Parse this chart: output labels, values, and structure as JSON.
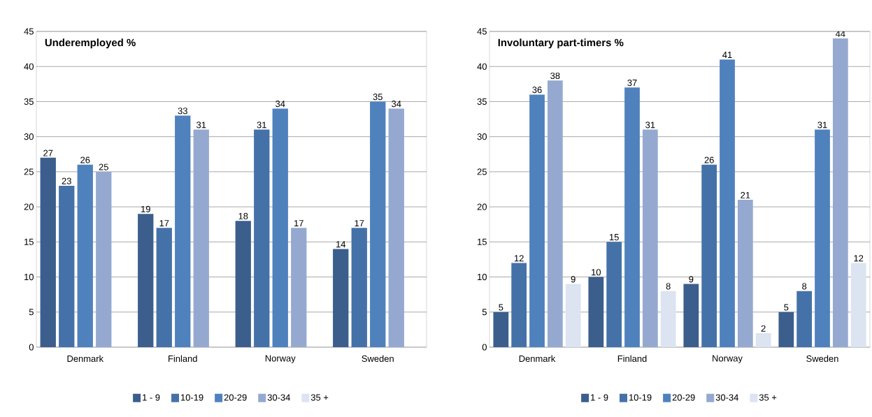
{
  "chart_data": [
    {
      "type": "bar",
      "title": "Underemployed %",
      "categories": [
        "Denmark",
        "Finland",
        "Norway",
        "Sweden"
      ],
      "series": [
        {
          "name": "1 - 9",
          "color": "#3b5e8c",
          "values": [
            27,
            19,
            18,
            14
          ]
        },
        {
          "name": "10-19",
          "color": "#4472a8",
          "values": [
            23,
            17,
            31,
            17
          ]
        },
        {
          "name": "20-29",
          "color": "#4f81bd",
          "values": [
            26,
            33,
            34,
            35
          ]
        },
        {
          "name": "30-34",
          "color": "#95a9d0",
          "values": [
            25,
            31,
            17,
            34
          ]
        },
        {
          "name": "35 +",
          "color": "#dbe4f0",
          "values": [
            null,
            null,
            null,
            null
          ]
        }
      ],
      "ylim": [
        0,
        45
      ],
      "yticks": [
        0,
        5,
        10,
        15,
        20,
        25,
        30,
        35,
        40,
        45
      ],
      "grid": "y",
      "legend": "bottom",
      "data_labels": true
    },
    {
      "type": "bar",
      "title": "Involuntary part-timers %",
      "categories": [
        "Denmark",
        "Finland",
        "Norway",
        "Sweden"
      ],
      "series": [
        {
          "name": "1 - 9",
          "color": "#3b5e8c",
          "values": [
            5,
            10,
            9,
            5
          ]
        },
        {
          "name": "10-19",
          "color": "#4472a8",
          "values": [
            12,
            15,
            26,
            8
          ]
        },
        {
          "name": "20-29",
          "color": "#4f81bd",
          "values": [
            36,
            37,
            41,
            31
          ]
        },
        {
          "name": "30-34",
          "color": "#95a9d0",
          "values": [
            38,
            31,
            21,
            44
          ]
        },
        {
          "name": "35 +",
          "color": "#dbe4f0",
          "values": [
            9,
            8,
            2,
            12
          ]
        }
      ],
      "ylim": [
        0,
        45
      ],
      "yticks": [
        0,
        5,
        10,
        15,
        20,
        25,
        30,
        35,
        40,
        45
      ],
      "grid": "y",
      "legend": "bottom",
      "data_labels": true
    }
  ]
}
